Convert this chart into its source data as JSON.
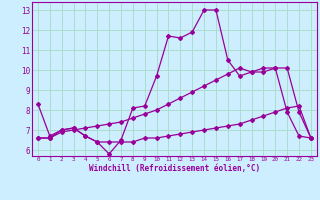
{
  "xlabel": "Windchill (Refroidissement éolien,°C)",
  "bg_color": "#cceeff",
  "line_color": "#990099",
  "grid_color": "#aaddcc",
  "x": [
    0,
    1,
    2,
    3,
    4,
    5,
    6,
    7,
    8,
    9,
    10,
    11,
    12,
    13,
    14,
    15,
    16,
    17,
    18,
    19,
    20,
    21,
    22,
    23
  ],
  "line1": [
    8.3,
    6.7,
    7.0,
    7.1,
    6.7,
    6.4,
    5.8,
    6.5,
    8.1,
    8.2,
    9.7,
    11.7,
    11.6,
    11.9,
    13.0,
    13.0,
    10.5,
    9.7,
    9.9,
    10.1,
    10.1,
    7.9,
    6.7,
    6.6
  ],
  "line2": [
    6.6,
    6.6,
    6.9,
    7.0,
    7.1,
    7.2,
    7.3,
    7.4,
    7.6,
    7.8,
    8.0,
    8.3,
    8.6,
    8.9,
    9.2,
    9.5,
    9.8,
    10.1,
    9.9,
    9.9,
    10.1,
    10.1,
    7.9,
    6.6
  ],
  "line3": [
    6.6,
    6.6,
    7.0,
    7.1,
    6.7,
    6.4,
    6.4,
    6.4,
    6.4,
    6.6,
    6.6,
    6.7,
    6.8,
    6.9,
    7.0,
    7.1,
    7.2,
    7.3,
    7.5,
    7.7,
    7.9,
    8.1,
    8.2,
    6.6
  ],
  "ylim": [
    5.7,
    13.4
  ],
  "yticks": [
    6,
    7,
    8,
    9,
    10,
    11,
    12,
    13
  ],
  "xlim": [
    -0.5,
    23.5
  ]
}
